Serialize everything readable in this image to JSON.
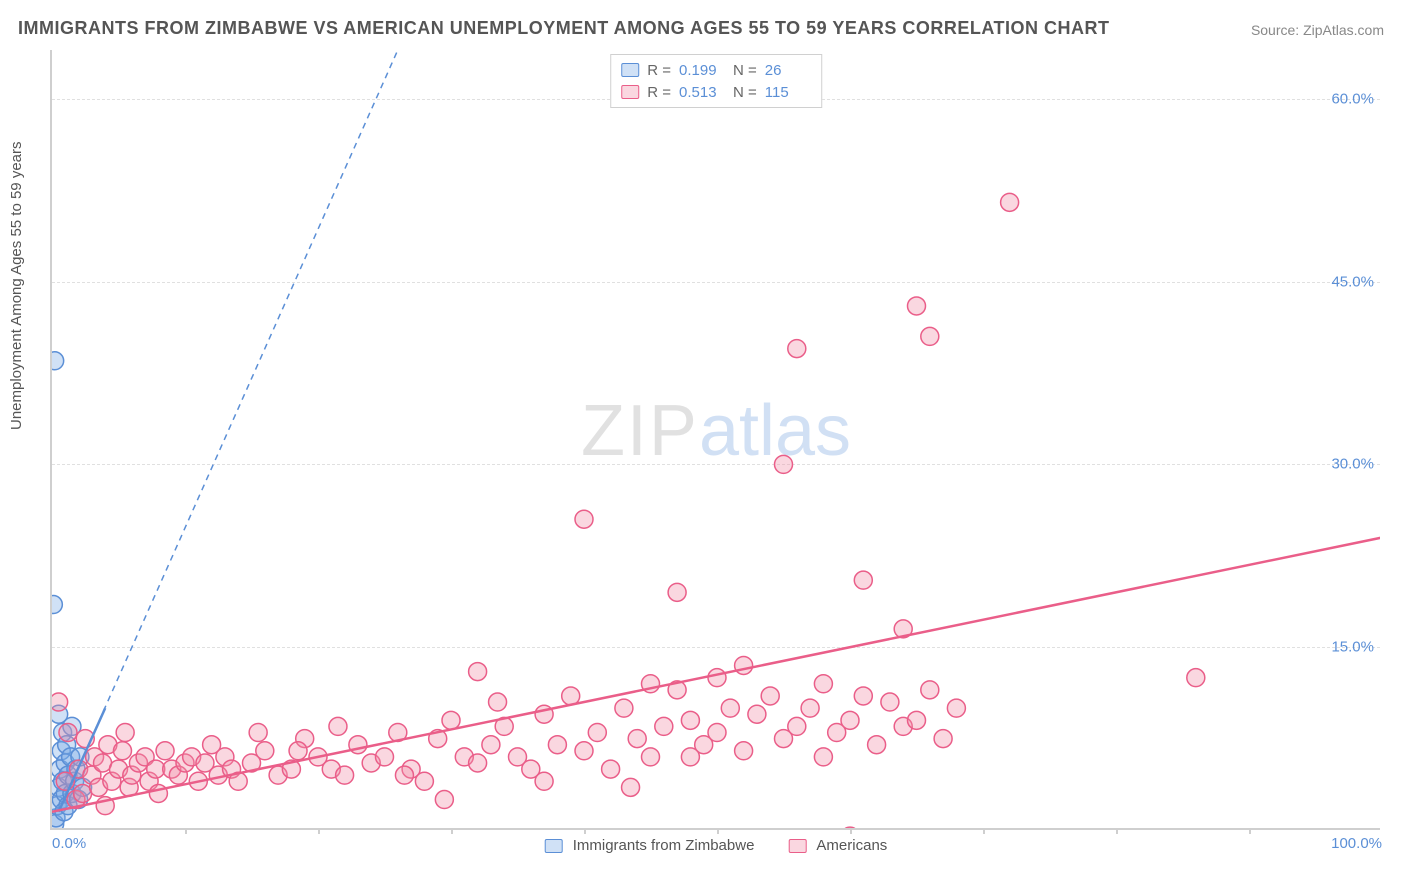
{
  "title": "IMMIGRANTS FROM ZIMBABWE VS AMERICAN UNEMPLOYMENT AMONG AGES 55 TO 59 YEARS CORRELATION CHART",
  "source": "Source: ZipAtlas.com",
  "ylabel": "Unemployment Among Ages 55 to 59 years",
  "watermark_p1": "ZIP",
  "watermark_p2": "atlas",
  "chart": {
    "type": "scatter",
    "xlim": [
      0,
      100
    ],
    "ylim": [
      0,
      64
    ],
    "ytick_step": 15,
    "ytick_labels": [
      "15.0%",
      "30.0%",
      "45.0%",
      "60.0%"
    ],
    "ytick_values": [
      15,
      30,
      45,
      60
    ],
    "xtick_labels_ends": [
      "0.0%",
      "100.0%"
    ],
    "xtick_marks": [
      10,
      20,
      30,
      40,
      50,
      60,
      70,
      80,
      90
    ],
    "background_color": "#ffffff",
    "grid_color": "#e0e0e0",
    "axis_color": "#cfcfcf",
    "marker_radius": 9,
    "marker_stroke_width": 1.5,
    "series": [
      {
        "name": "Immigrants from Zimbabwe",
        "fill": "rgba(120,170,230,0.35)",
        "stroke": "#5b8fd6",
        "r_value": "0.199",
        "n_value": "26",
        "trend_dash": "6 5",
        "trend_width": 1.5,
        "trend_color": "#5b8fd6",
        "trend_start": [
          0.5,
          1.5
        ],
        "trend_end": [
          26,
          64
        ],
        "trend_solid_end": [
          4,
          10
        ],
        "points": [
          [
            0.2,
            38.5
          ],
          [
            0.1,
            18.5
          ],
          [
            0.2,
            0.5
          ],
          [
            0.3,
            1.0
          ],
          [
            0.4,
            2.0
          ],
          [
            0.5,
            3.5
          ],
          [
            0.5,
            9.5
          ],
          [
            0.6,
            5.0
          ],
          [
            0.7,
            2.5
          ],
          [
            0.7,
            6.5
          ],
          [
            0.8,
            4.0
          ],
          [
            0.8,
            8.0
          ],
          [
            0.9,
            1.5
          ],
          [
            1.0,
            3.0
          ],
          [
            1.0,
            5.5
          ],
          [
            1.1,
            7.0
          ],
          [
            1.2,
            2.0
          ],
          [
            1.2,
            4.5
          ],
          [
            1.4,
            6.0
          ],
          [
            1.5,
            3.0
          ],
          [
            1.5,
            8.5
          ],
          [
            1.7,
            4.0
          ],
          [
            1.8,
            5.0
          ],
          [
            2.0,
            2.5
          ],
          [
            2.1,
            6.0
          ],
          [
            2.3,
            3.5
          ]
        ]
      },
      {
        "name": "Americans",
        "fill": "rgba(240,140,165,0.35)",
        "stroke": "#ea5e89",
        "r_value": "0.513",
        "n_value": "115",
        "trend_dash": "",
        "trend_width": 2.5,
        "trend_color": "#ea5e89",
        "trend_start": [
          0,
          1.5
        ],
        "trend_end": [
          100,
          24
        ],
        "points": [
          [
            0.5,
            10.5
          ],
          [
            1.0,
            4.0
          ],
          [
            1.2,
            8.0
          ],
          [
            1.8,
            2.5
          ],
          [
            2.0,
            5.0
          ],
          [
            2.3,
            3.0
          ],
          [
            2.5,
            7.5
          ],
          [
            3.0,
            4.5
          ],
          [
            3.2,
            6.0
          ],
          [
            3.5,
            3.5
          ],
          [
            3.8,
            5.5
          ],
          [
            4.0,
            2.0
          ],
          [
            4.2,
            7.0
          ],
          [
            4.5,
            4.0
          ],
          [
            5.0,
            5.0
          ],
          [
            5.3,
            6.5
          ],
          [
            5.8,
            3.5
          ],
          [
            6.0,
            4.5
          ],
          [
            6.5,
            5.5
          ],
          [
            7.0,
            6.0
          ],
          [
            7.3,
            4.0
          ],
          [
            7.8,
            5.0
          ],
          [
            8.0,
            3.0
          ],
          [
            8.5,
            6.5
          ],
          [
            9.0,
            5.0
          ],
          [
            9.5,
            4.5
          ],
          [
            10.0,
            5.5
          ],
          [
            10.5,
            6.0
          ],
          [
            11.0,
            4.0
          ],
          [
            11.5,
            5.5
          ],
          [
            12.0,
            7.0
          ],
          [
            12.5,
            4.5
          ],
          [
            13.0,
            6.0
          ],
          [
            13.5,
            5.0
          ],
          [
            14.0,
            4.0
          ],
          [
            15.0,
            5.5
          ],
          [
            16.0,
            6.5
          ],
          [
            17.0,
            4.5
          ],
          [
            18.0,
            5.0
          ],
          [
            19.0,
            7.5
          ],
          [
            20.0,
            6.0
          ],
          [
            21.0,
            5.0
          ],
          [
            22.0,
            4.5
          ],
          [
            23.0,
            7.0
          ],
          [
            24.0,
            5.5
          ],
          [
            25.0,
            6.0
          ],
          [
            26.0,
            8.0
          ],
          [
            27.0,
            5.0
          ],
          [
            28.0,
            4.0
          ],
          [
            29.0,
            7.5
          ],
          [
            30.0,
            9.0
          ],
          [
            31.0,
            6.0
          ],
          [
            32.0,
            13.0
          ],
          [
            32.0,
            5.5
          ],
          [
            33.0,
            7.0
          ],
          [
            34.0,
            8.5
          ],
          [
            35.0,
            6.0
          ],
          [
            36.0,
            5.0
          ],
          [
            37.0,
            9.5
          ],
          [
            38.0,
            7.0
          ],
          [
            39.0,
            11.0
          ],
          [
            40.0,
            6.5
          ],
          [
            40.0,
            25.5
          ],
          [
            41.0,
            8.0
          ],
          [
            42.0,
            5.0
          ],
          [
            43.0,
            10.0
          ],
          [
            44.0,
            7.5
          ],
          [
            45.0,
            6.0
          ],
          [
            45.0,
            12.0
          ],
          [
            46.0,
            8.5
          ],
          [
            47.0,
            19.5
          ],
          [
            47.0,
            11.5
          ],
          [
            48.0,
            9.0
          ],
          [
            49.0,
            7.0
          ],
          [
            50.0,
            12.5
          ],
          [
            50.0,
            8.0
          ],
          [
            51.0,
            10.0
          ],
          [
            52.0,
            6.5
          ],
          [
            53.0,
            9.5
          ],
          [
            54.0,
            11.0
          ],
          [
            55.0,
            7.5
          ],
          [
            55.0,
            30.0
          ],
          [
            56.0,
            39.5
          ],
          [
            56.0,
            8.5
          ],
          [
            57.0,
            10.0
          ],
          [
            58.0,
            12.0
          ],
          [
            59.0,
            8.0
          ],
          [
            60.0,
            9.0
          ],
          [
            60.0,
            -0.5
          ],
          [
            61.0,
            11.0
          ],
          [
            61.0,
            20.5
          ],
          [
            62.0,
            7.0
          ],
          [
            63.0,
            10.5
          ],
          [
            64.0,
            16.5
          ],
          [
            64.0,
            8.5
          ],
          [
            65.0,
            43.0
          ],
          [
            65.0,
            9.0
          ],
          [
            66.0,
            11.5
          ],
          [
            66.0,
            40.5
          ],
          [
            67.0,
            7.5
          ],
          [
            72.0,
            51.5
          ],
          [
            86.0,
            12.5
          ],
          [
            68.0,
            10.0
          ],
          [
            58.0,
            6.0
          ],
          [
            52.0,
            13.5
          ],
          [
            48.0,
            6.0
          ],
          [
            43.5,
            3.5
          ],
          [
            37.0,
            4.0
          ],
          [
            33.5,
            10.5
          ],
          [
            29.5,
            2.5
          ],
          [
            26.5,
            4.5
          ],
          [
            21.5,
            8.5
          ],
          [
            18.5,
            6.5
          ],
          [
            15.5,
            8.0
          ],
          [
            5.5,
            8.0
          ]
        ]
      }
    ]
  },
  "legend_bottom": [
    {
      "label": "Immigrants from Zimbabwe",
      "fill": "rgba(120,170,230,0.35)",
      "stroke": "#5b8fd6"
    },
    {
      "label": "Americans",
      "fill": "rgba(240,140,165,0.35)",
      "stroke": "#ea5e89"
    }
  ]
}
